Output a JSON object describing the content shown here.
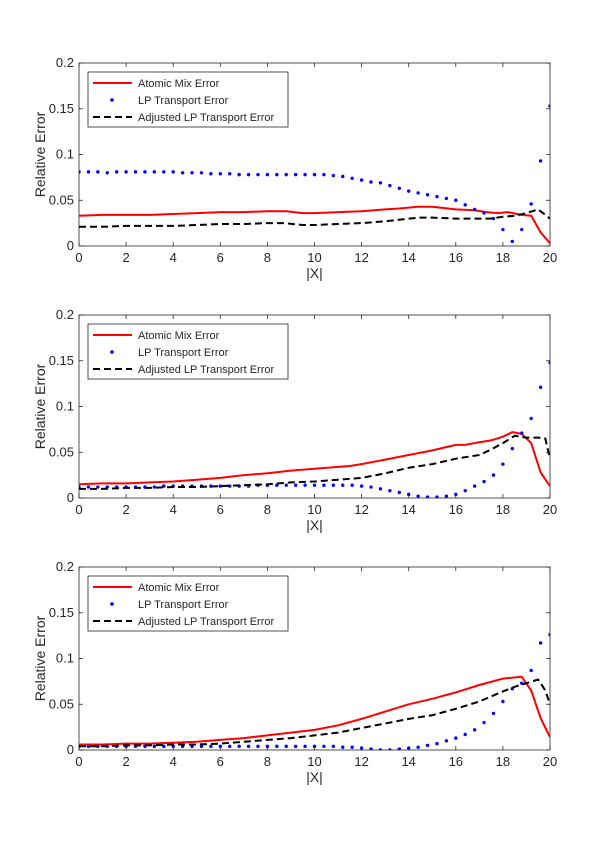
{
  "chart_data": [
    {
      "type": "line",
      "xlabel": "|X|",
      "ylabel": "Relative Error",
      "xlim": [
        0,
        20
      ],
      "ylim": [
        0,
        0.2
      ],
      "xticks": [
        0,
        2,
        4,
        6,
        8,
        10,
        12,
        14,
        16,
        18,
        20
      ],
      "yticks": [
        0,
        0.05,
        0.1,
        0.15,
        0.2
      ],
      "xtick_labels": [
        "0",
        "2",
        "4",
        "6",
        "8",
        "10",
        "12",
        "14",
        "16",
        "18",
        "20"
      ],
      "ytick_labels": [
        "0",
        "0.05",
        "0.1",
        "0.15",
        "0.2"
      ],
      "legend_position": "top-left",
      "grid": false,
      "series": [
        {
          "name": "Atomic Mix Error",
          "style": "solid",
          "color": "#ff0000",
          "x": [
            0,
            1,
            2,
            3,
            4,
            5,
            6,
            7,
            8,
            8.8,
            9.5,
            10,
            11,
            12,
            13,
            13.6,
            14.4,
            15,
            16,
            16.8,
            17.3,
            17.8,
            18.2,
            18.8,
            19.2,
            19.6,
            20
          ],
          "y": [
            0.033,
            0.034,
            0.034,
            0.034,
            0.035,
            0.036,
            0.037,
            0.037,
            0.038,
            0.038,
            0.036,
            0.036,
            0.037,
            0.038,
            0.04,
            0.041,
            0.043,
            0.043,
            0.04,
            0.039,
            0.037,
            0.036,
            0.037,
            0.034,
            0.033,
            0.015,
            0.003
          ]
        },
        {
          "name": "LP Transport Error",
          "style": "dotted",
          "color": "#0000ff",
          "x": [
            0,
            0.4,
            0.8,
            1.2,
            1.6,
            2,
            2.4,
            2.8,
            3.2,
            3.6,
            4,
            4.4,
            4.8,
            5.2,
            5.6,
            6,
            6.4,
            6.8,
            7.2,
            7.6,
            8,
            8.4,
            8.8,
            9.2,
            9.6,
            10,
            10.4,
            10.8,
            11.2,
            11.6,
            12,
            12.4,
            12.8,
            13.2,
            13.6,
            14,
            14.4,
            14.8,
            15.2,
            15.6,
            16,
            16.4,
            16.8,
            17.2,
            17.6,
            18,
            18.4,
            18.8,
            19.2,
            19.6,
            20
          ],
          "y": [
            0.081,
            0.081,
            0.081,
            0.08,
            0.081,
            0.081,
            0.081,
            0.081,
            0.081,
            0.081,
            0.081,
            0.08,
            0.08,
            0.08,
            0.079,
            0.079,
            0.079,
            0.078,
            0.078,
            0.078,
            0.078,
            0.078,
            0.078,
            0.078,
            0.078,
            0.078,
            0.078,
            0.077,
            0.076,
            0.074,
            0.072,
            0.07,
            0.069,
            0.066,
            0.063,
            0.06,
            0.058,
            0.056,
            0.054,
            0.052,
            0.05,
            0.045,
            0.04,
            0.036,
            0.03,
            0.018,
            0.005,
            0.018,
            0.046,
            0.093,
            0.153
          ]
        },
        {
          "name": "Adjusted LP Transport Error",
          "style": "dashed",
          "color": "#000000",
          "x": [
            0,
            1,
            2,
            3,
            4,
            5,
            6,
            7,
            8,
            8.7,
            9.5,
            10,
            11,
            12,
            13,
            14,
            14.5,
            15,
            16,
            17,
            17.5,
            18,
            18.5,
            19,
            19.5,
            20
          ],
          "y": [
            0.021,
            0.021,
            0.022,
            0.022,
            0.022,
            0.023,
            0.024,
            0.024,
            0.025,
            0.025,
            0.023,
            0.023,
            0.024,
            0.025,
            0.027,
            0.03,
            0.031,
            0.031,
            0.03,
            0.03,
            0.03,
            0.032,
            0.033,
            0.036,
            0.04,
            0.03
          ]
        }
      ]
    },
    {
      "type": "line",
      "xlabel": "|X|",
      "ylabel": "Relative Error",
      "xlim": [
        0,
        20
      ],
      "ylim": [
        0,
        0.2
      ],
      "xticks": [
        0,
        2,
        4,
        6,
        8,
        10,
        12,
        14,
        16,
        18,
        20
      ],
      "yticks": [
        0,
        0.05,
        0.1,
        0.15,
        0.2
      ],
      "xtick_labels": [
        "0",
        "2",
        "4",
        "6",
        "8",
        "10",
        "12",
        "14",
        "16",
        "18",
        "20"
      ],
      "ytick_labels": [
        "0",
        "0.05",
        "0.1",
        "0.15",
        "0.2"
      ],
      "legend_position": "top-left",
      "grid": false,
      "series": [
        {
          "name": "Atomic Mix Error",
          "style": "solid",
          "color": "#ff0000",
          "x": [
            0,
            1,
            2,
            3,
            4,
            5,
            6,
            7,
            8,
            9,
            10,
            11,
            11.5,
            12,
            13,
            14,
            15,
            16,
            16.4,
            17,
            17.5,
            18,
            18.4,
            18.8,
            19.2,
            19.6,
            20
          ],
          "y": [
            0.015,
            0.016,
            0.016,
            0.017,
            0.018,
            0.02,
            0.022,
            0.025,
            0.027,
            0.03,
            0.032,
            0.034,
            0.035,
            0.037,
            0.042,
            0.047,
            0.052,
            0.058,
            0.058,
            0.061,
            0.063,
            0.067,
            0.072,
            0.07,
            0.06,
            0.028,
            0.013
          ]
        },
        {
          "name": "LP Transport Error",
          "style": "dotted",
          "color": "#0000ff",
          "x": [
            0,
            0.4,
            0.8,
            1.2,
            1.6,
            2,
            2.4,
            2.8,
            3.2,
            3.6,
            4,
            4.4,
            4.8,
            5.2,
            5.6,
            6,
            6.4,
            6.8,
            7.2,
            7.6,
            8,
            8.4,
            8.8,
            9.2,
            9.6,
            10,
            10.4,
            10.8,
            11.2,
            11.6,
            12,
            12.4,
            12.8,
            13.2,
            13.6,
            14,
            14.4,
            14.8,
            15.2,
            15.6,
            16,
            16.4,
            16.8,
            17.2,
            17.6,
            18,
            18.4,
            18.8,
            19.2,
            19.6,
            20
          ],
          "y": [
            0.012,
            0.012,
            0.012,
            0.012,
            0.012,
            0.012,
            0.012,
            0.012,
            0.012,
            0.013,
            0.013,
            0.013,
            0.013,
            0.013,
            0.013,
            0.013,
            0.013,
            0.013,
            0.013,
            0.014,
            0.014,
            0.014,
            0.014,
            0.014,
            0.014,
            0.014,
            0.014,
            0.014,
            0.014,
            0.014,
            0.013,
            0.012,
            0.01,
            0.008,
            0.006,
            0.004,
            0.002,
            0.001,
            0.001,
            0.002,
            0.004,
            0.008,
            0.013,
            0.018,
            0.025,
            0.037,
            0.054,
            0.071,
            0.087,
            0.121,
            0.148
          ]
        },
        {
          "name": "Adjusted LP Transport Error",
          "style": "dashed",
          "color": "#000000",
          "x": [
            0,
            1,
            2,
            3,
            4,
            5,
            6,
            7,
            8,
            9,
            10,
            11,
            12,
            13,
            14,
            15,
            16,
            17,
            17.5,
            18,
            18.5,
            19,
            19.5,
            19.8,
            20
          ],
          "y": [
            0.01,
            0.01,
            0.011,
            0.011,
            0.012,
            0.012,
            0.013,
            0.014,
            0.015,
            0.017,
            0.018,
            0.02,
            0.022,
            0.027,
            0.033,
            0.037,
            0.043,
            0.047,
            0.053,
            0.06,
            0.068,
            0.066,
            0.066,
            0.065,
            0.043
          ]
        }
      ]
    },
    {
      "type": "line",
      "xlabel": "|X|",
      "ylabel": "Relative Error",
      "xlim": [
        0,
        20
      ],
      "ylim": [
        0,
        0.2
      ],
      "xticks": [
        0,
        2,
        4,
        6,
        8,
        10,
        12,
        14,
        16,
        18,
        20
      ],
      "yticks": [
        0,
        0.05,
        0.1,
        0.15,
        0.2
      ],
      "xtick_labels": [
        "0",
        "2",
        "4",
        "6",
        "8",
        "10",
        "12",
        "14",
        "16",
        "18",
        "20"
      ],
      "ytick_labels": [
        "0",
        "0.05",
        "0.1",
        "0.15",
        "0.2"
      ],
      "legend_position": "top-left",
      "grid": false,
      "series": [
        {
          "name": "Atomic Mix Error",
          "style": "solid",
          "color": "#ff0000",
          "x": [
            0,
            1,
            2,
            3,
            4,
            5,
            6,
            7,
            8,
            9,
            10,
            11,
            12,
            13,
            14,
            15,
            16,
            17,
            18,
            18.8,
            19.2,
            19.6,
            20
          ],
          "y": [
            0.006,
            0.006,
            0.007,
            0.007,
            0.008,
            0.009,
            0.011,
            0.013,
            0.016,
            0.019,
            0.022,
            0.027,
            0.034,
            0.042,
            0.05,
            0.056,
            0.063,
            0.071,
            0.078,
            0.08,
            0.065,
            0.035,
            0.014
          ]
        },
        {
          "name": "LP Transport Error",
          "style": "dotted",
          "color": "#0000ff",
          "x": [
            0,
            0.4,
            0.8,
            1.2,
            1.6,
            2,
            2.4,
            2.8,
            3.2,
            3.6,
            4,
            4.4,
            4.8,
            5.2,
            5.6,
            6,
            6.4,
            6.8,
            7.2,
            7.6,
            8,
            8.4,
            8.8,
            9.2,
            9.6,
            10,
            10.4,
            10.8,
            11.2,
            11.6,
            12,
            12.4,
            12.8,
            13.2,
            13.6,
            14,
            14.4,
            14.8,
            15.2,
            15.6,
            16,
            16.4,
            16.8,
            17.2,
            17.6,
            18,
            18.4,
            18.8,
            19.2,
            19.6,
            20
          ],
          "y": [
            0.004,
            0.004,
            0.004,
            0.004,
            0.004,
            0.004,
            0.004,
            0.004,
            0.004,
            0.004,
            0.004,
            0.004,
            0.004,
            0.004,
            0.004,
            0.004,
            0.004,
            0.004,
            0.004,
            0.004,
            0.004,
            0.004,
            0.004,
            0.004,
            0.004,
            0.004,
            0.004,
            0.004,
            0.003,
            0.003,
            0.002,
            0.001,
            0,
            0,
            0.001,
            0.002,
            0.003,
            0.005,
            0.007,
            0.01,
            0.013,
            0.017,
            0.022,
            0.03,
            0.04,
            0.053,
            0.067,
            0.073,
            0.087,
            0.117,
            0.126
          ]
        },
        {
          "name": "Adjusted LP Transport Error",
          "style": "dashed",
          "color": "#000000",
          "x": [
            0,
            1,
            2,
            3,
            4,
            5,
            6,
            7,
            8,
            9,
            10,
            11,
            12,
            13,
            14,
            15,
            16,
            17,
            18,
            18.6,
            19,
            19.5,
            19.8,
            20
          ],
          "y": [
            0.004,
            0.004,
            0.005,
            0.005,
            0.006,
            0.006,
            0.007,
            0.009,
            0.011,
            0.013,
            0.016,
            0.019,
            0.024,
            0.029,
            0.034,
            0.038,
            0.045,
            0.053,
            0.064,
            0.07,
            0.073,
            0.077,
            0.065,
            0.05
          ]
        }
      ]
    }
  ]
}
